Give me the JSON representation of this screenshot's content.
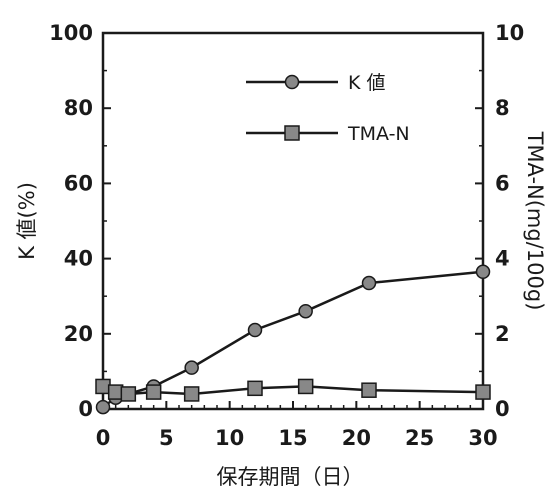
{
  "chart_data": {
    "type": "line",
    "xlabel": "保存期間（日）",
    "ylabel_left": "K 値(%)",
    "ylabel_right": "TMA-N(mg/100g)",
    "xlim": [
      0,
      30
    ],
    "ylim_left": [
      0,
      100
    ],
    "ylim_right": [
      0,
      10
    ],
    "xticks": [
      0,
      5,
      10,
      15,
      20,
      25,
      30
    ],
    "yticks_left": [
      0,
      20,
      40,
      60,
      80,
      100
    ],
    "yticks_right": [
      0,
      2,
      4,
      6,
      8,
      10
    ],
    "grid": false,
    "legend_position": "upper-center",
    "series": [
      {
        "name": "K 値",
        "axis": "left",
        "marker": "circle",
        "color": "#1a1a1a",
        "marker_color": "#888888",
        "x": [
          0,
          1,
          4,
          7,
          12,
          16,
          21,
          30
        ],
        "y": [
          0.5,
          3,
          6,
          11,
          21,
          26,
          33.5,
          36.5
        ]
      },
      {
        "name": "TMA-N",
        "axis": "right",
        "marker": "square",
        "color": "#1a1a1a",
        "marker_color": "#888888",
        "x": [
          0,
          1,
          2,
          4,
          7,
          12,
          16,
          21,
          30
        ],
        "y": [
          0.6,
          0.45,
          0.4,
          0.45,
          0.4,
          0.55,
          0.6,
          0.5,
          0.45
        ]
      }
    ]
  }
}
